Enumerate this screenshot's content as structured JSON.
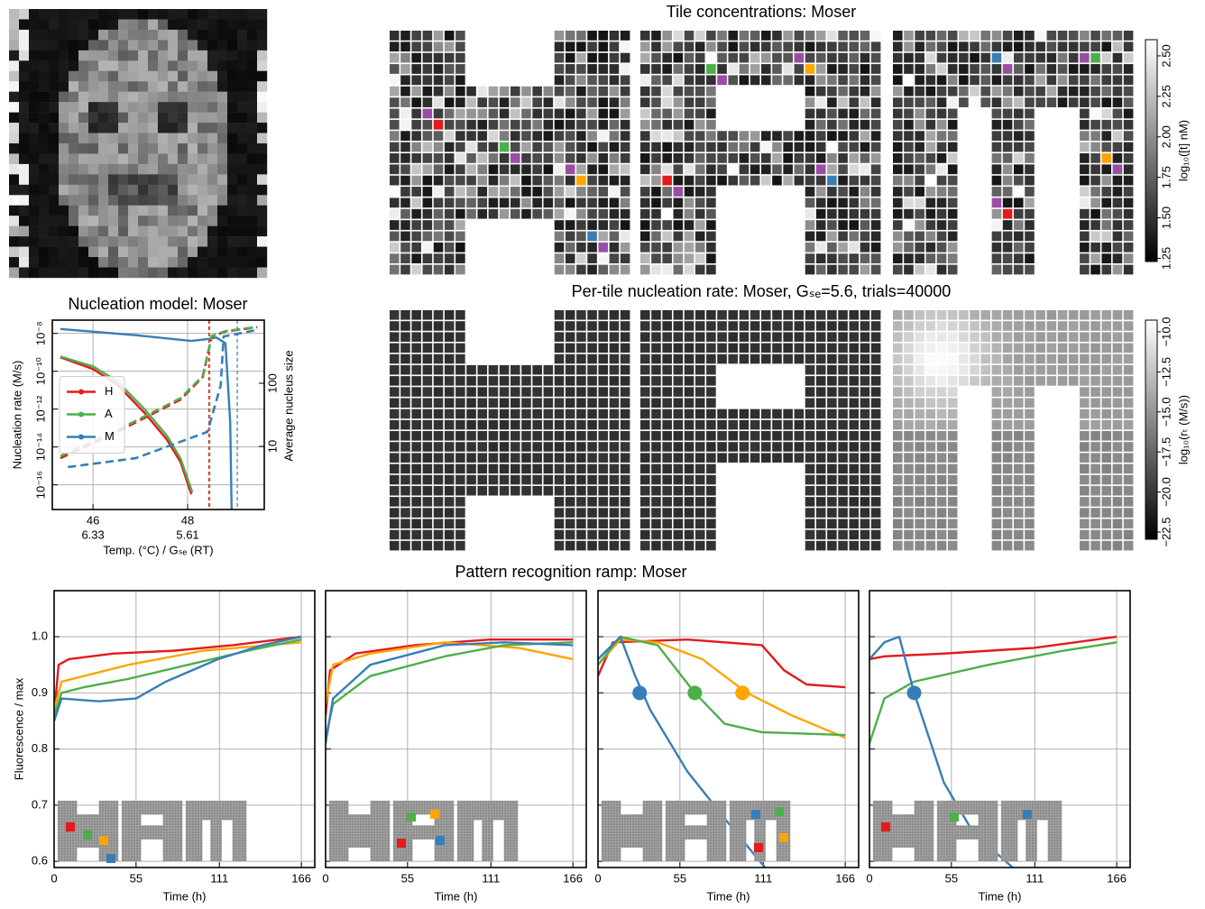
{
  "chart_data": [
    {
      "type": "heatmap",
      "title": "Tile concentrations: Moser",
      "colorbar": {
        "label": "log₁₀([t] nM)",
        "lim": [
          1.23,
          2.6
        ],
        "ticks": [
          1.25,
          {
            "value": 1.5,
            "label": "1.50"
          },
          1.75,
          {
            "value": 2.0,
            "label": "2.00"
          },
          2.25,
          {
            "value": 2.5,
            "label": "2.50"
          }
        ]
      }
    },
    {
      "type": "line",
      "title": "Nucleation model: Moser",
      "xlabel": "Temp. (°C) / Gₛₑ (RT)",
      "ylabel": "Nucleation rate (M/s)",
      "y2label": "Average nucleus size",
      "yscale": "log",
      "y2scale": "log",
      "xlim": [
        45.14,
        49.62
      ],
      "ylim": [
        5e-18,
        5e-08
      ],
      "y2lim": [
        1,
        1000
      ],
      "xticks": [
        46,
        48
      ],
      "xticks2": [
        {
          "value": 46,
          "label": "6.33"
        },
        {
          "value": 48,
          "label": "5.61"
        }
      ],
      "yticks": [
        {
          "value": 1e-16,
          "label": "10⁻¹⁶"
        },
        {
          "value": 1e-14,
          "label": "10⁻¹⁴"
        },
        {
          "value": 1e-12,
          "label": "10⁻¹²"
        },
        {
          "value": 1e-10,
          "label": "10⁻¹⁰"
        },
        {
          "value": 1e-08,
          "label": "10⁻⁸"
        }
      ],
      "y2ticks": [
        10,
        100
      ],
      "grid": true,
      "legend": "center left",
      "series": [
        {
          "name": "H",
          "color": "#e41a1c",
          "x": [
            45.31,
            46.0,
            46.51,
            47.09,
            47.56,
            47.85,
            48.08
          ],
          "values": [
            5.4e-10,
            1.3e-10,
            2e-11,
            6.3e-13,
            2.5e-14,
            1.6e-15,
            3.2e-17
          ]
        },
        {
          "name": "A",
          "color": "#4daf4a",
          "x": [
            45.31,
            46.0,
            46.51,
            47.09,
            47.56,
            47.85,
            48.1
          ],
          "values": [
            6e-10,
            1.8e-10,
            3e-11,
            1e-12,
            4e-14,
            2.5e-15,
            4e-17
          ]
        },
        {
          "name": "M",
          "color": "#377eb8",
          "x": [
            45.31,
            46.9,
            48.08,
            48.42,
            48.61,
            48.8,
            48.9,
            48.93
          ],
          "values": [
            1.7e-08,
            8e-09,
            4e-09,
            5e-09,
            6e-09,
            3e-09,
            2e-13,
            5e-18
          ]
        },
        {
          "color": "#e41a1c",
          "axis": "y2",
          "style": "dashed",
          "x": [
            45.31,
            46.51,
            47.85,
            48.32,
            48.51,
            48.8,
            49.47
          ],
          "values": [
            6.5,
            17,
            55,
            126,
            550,
            660,
            770
          ]
        },
        {
          "color": "#4daf4a",
          "axis": "y2",
          "style": "dashed",
          "x": [
            45.31,
            46.51,
            47.85,
            48.32,
            48.51,
            48.8,
            49.47
          ],
          "values": [
            7,
            18,
            58,
            130,
            560,
            670,
            780
          ]
        },
        {
          "color": "#377eb8",
          "axis": "y2",
          "style": "dashed",
          "x": [
            45.47,
            46.9,
            48.42,
            48.7,
            48.76,
            49.47
          ],
          "values": [
            4.7,
            6.5,
            17,
            93,
            550,
            700
          ]
        }
      ],
      "vlines": [
        {
          "x": 48.45,
          "color": "#e41a1c"
        },
        {
          "x": 48.47,
          "color": "#4daf4a"
        },
        {
          "x": 49.05,
          "color": "#377eb8"
        }
      ]
    },
    {
      "type": "heatmap",
      "title": "Per-tile nucleation rate: Moser, Gₛₑ=5.6, trials=40000",
      "colorbar": {
        "label": "log₁₀(rₜ (M/s))",
        "lim": [
          -22.95,
          -9.27
        ],
        "ticks": [
          {
            "value": -22.5,
            "label": "−22.5"
          },
          {
            "value": -20.0,
            "label": "−20.0"
          },
          {
            "value": -17.5,
            "label": "−17.5"
          },
          {
            "value": -15.0,
            "label": "−15.0"
          },
          {
            "value": -12.5,
            "label": "−12.5"
          },
          {
            "value": -10.0,
            "label": "−10.0"
          }
        ]
      }
    },
    {
      "type": "line",
      "title": "Pattern recognition ramp: Moser",
      "xlabel": "Time (h)",
      "ylabel": "Fluorescence / max",
      "xlim": [
        0,
        175
      ],
      "ylim": [
        0.589,
        1.082
      ],
      "xticks": [
        0,
        55,
        111,
        166
      ],
      "yticks": [
        0.6,
        0.7,
        0.8,
        0.9,
        {
          "value": 1.0,
          "label": "1.0"
        }
      ],
      "grid": true,
      "series": [
        {
          "color": "#e41a1c",
          "x": [
            0,
            3,
            10,
            40,
            80,
            120,
            166
          ],
          "values": [
            0.86,
            0.95,
            0.96,
            0.97,
            0.975,
            0.985,
            1.0
          ]
        },
        {
          "color": "#ffa500",
          "x": [
            0,
            5,
            20,
            50,
            100,
            166
          ],
          "values": [
            0.87,
            0.92,
            0.93,
            0.95,
            0.975,
            0.99
          ]
        },
        {
          "color": "#4daf4a",
          "x": [
            0,
            5,
            20,
            50,
            90,
            130,
            166
          ],
          "values": [
            0.86,
            0.9,
            0.91,
            0.925,
            0.95,
            0.975,
            0.995
          ]
        },
        {
          "color": "#377eb8",
          "x": [
            0,
            5,
            30,
            55,
            75,
            110,
            140,
            166
          ],
          "values": [
            0.85,
            0.89,
            0.885,
            0.89,
            0.92,
            0.96,
            0.985,
            1.0
          ]
        }
      ]
    },
    {
      "type": "line",
      "xlabel": "Time (h)",
      "xlim": [
        0,
        175
      ],
      "ylim": [
        0.589,
        1.082
      ],
      "xticks": [
        0,
        55,
        111,
        166
      ],
      "yticks": [
        0.6,
        0.7,
        0.8,
        0.9,
        1.0
      ],
      "yticklabels": false,
      "grid": true,
      "series": [
        {
          "color": "#e41a1c",
          "x": [
            0,
            3,
            20,
            60,
            110,
            166
          ],
          "values": [
            0.86,
            0.94,
            0.97,
            0.985,
            0.995,
            0.995
          ]
        },
        {
          "color": "#ffa500",
          "x": [
            0,
            5,
            30,
            80,
            130,
            166
          ],
          "values": [
            0.88,
            0.95,
            0.97,
            0.99,
            0.98,
            0.96
          ]
        },
        {
          "color": "#4daf4a",
          "x": [
            0,
            5,
            30,
            80,
            120,
            166
          ],
          "values": [
            0.82,
            0.88,
            0.93,
            0.965,
            0.985,
            0.99
          ]
        },
        {
          "color": "#377eb8",
          "x": [
            0,
            5,
            30,
            80,
            120,
            166
          ],
          "values": [
            0.81,
            0.89,
            0.95,
            0.985,
            0.99,
            0.985
          ]
        }
      ]
    },
    {
      "type": "line",
      "xlabel": "Time (h)",
      "xlim": [
        0,
        175
      ],
      "ylim": [
        0.589,
        1.082
      ],
      "xticks": [
        0,
        55,
        111,
        166
      ],
      "yticks": [
        0.6,
        0.7,
        0.8,
        0.9,
        1.0
      ],
      "yticklabels": false,
      "grid": true,
      "series": [
        {
          "color": "#e41a1c",
          "x": [
            0,
            10,
            60,
            110,
            125,
            140,
            166
          ],
          "values": [
            0.93,
            0.99,
            0.995,
            0.985,
            0.94,
            0.915,
            0.91
          ]
        },
        {
          "color": "#ffa500",
          "x": [
            0,
            15,
            40,
            70,
            100,
            130,
            166
          ],
          "values": [
            0.95,
            0.995,
            0.99,
            0.96,
            0.9,
            0.86,
            0.82
          ]
        },
        {
          "color": "#4daf4a",
          "x": [
            0,
            15,
            40,
            65,
            85,
            110,
            166
          ],
          "values": [
            0.95,
            1.0,
            0.985,
            0.9,
            0.845,
            0.83,
            0.825
          ]
        },
        {
          "color": "#377eb8",
          "x": [
            0,
            15,
            25,
            35,
            60,
            90,
            115
          ],
          "values": [
            0.96,
            1.0,
            0.93,
            0.87,
            0.76,
            0.66,
            0.58
          ]
        }
      ],
      "markers": [
        {
          "x": 28,
          "y": 0.9,
          "color": "#377eb8"
        },
        {
          "x": 65,
          "y": 0.9,
          "color": "#4daf4a"
        },
        {
          "x": 97,
          "y": 0.9,
          "color": "#ffa500"
        }
      ]
    },
    {
      "type": "line",
      "xlabel": "Time (h)",
      "xlim": [
        0,
        175
      ],
      "ylim": [
        0.589,
        1.082
      ],
      "xticks": [
        0,
        55,
        111,
        166
      ],
      "yticks": [
        0.6,
        0.7,
        0.8,
        0.9,
        1.0
      ],
      "yticklabels": false,
      "grid": true,
      "series": [
        {
          "color": "#e41a1c",
          "x": [
            0,
            10,
            50,
            110,
            166
          ],
          "values": [
            0.96,
            0.965,
            0.97,
            0.98,
            1.0
          ]
        },
        {
          "color": "#4daf4a",
          "x": [
            0,
            10,
            30,
            80,
            130,
            166
          ],
          "values": [
            0.81,
            0.89,
            0.92,
            0.95,
            0.975,
            0.99
          ]
        },
        {
          "color": "#377eb8",
          "x": [
            0,
            10,
            20,
            30,
            50,
            70,
            100
          ],
          "values": [
            0.96,
            0.99,
            1.0,
            0.9,
            0.74,
            0.65,
            0.58
          ]
        }
      ],
      "markers": [
        {
          "x": 30,
          "y": 0.9,
          "color": "#377eb8"
        }
      ]
    }
  ]
}
